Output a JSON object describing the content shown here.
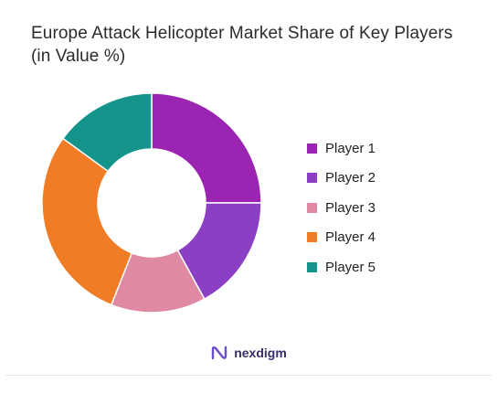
{
  "chart_data": {
    "type": "pie",
    "variant": "donut",
    "title": "Europe Attack Helicopter Market Share of Key Players (in Value %)",
    "categories": [
      "Player 1",
      "Player 2",
      "Player 3",
      "Player 4",
      "Player 5"
    ],
    "values": [
      25,
      17,
      14,
      29,
      15
    ],
    "colors": [
      "#9b24b3",
      "#8a3fc4",
      "#df8aa2",
      "#f07c25",
      "#14948a"
    ],
    "legend": "right"
  },
  "footer": {
    "brand": "nexdigm"
  }
}
